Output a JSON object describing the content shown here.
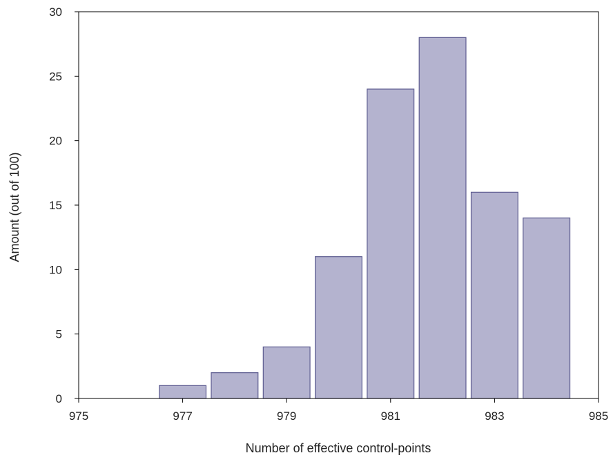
{
  "chart_data": {
    "type": "bar",
    "title": "",
    "xlabel": "Number of effective control-points",
    "ylabel": "Amount (out of 100)",
    "xlim": [
      975,
      985
    ],
    "ylim": [
      0,
      30
    ],
    "x_ticks": [
      975,
      977,
      979,
      981,
      983,
      985
    ],
    "x_tick_labels": [
      "975",
      "977",
      "979",
      "981",
      "983",
      "985"
    ],
    "y_ticks": [
      0,
      5,
      10,
      15,
      20,
      25,
      30
    ],
    "y_tick_labels": [
      "0",
      "5",
      "10",
      "15",
      "20",
      "25",
      "30"
    ],
    "bar_width": 0.9,
    "categories": [
      977,
      978,
      979,
      980,
      981,
      982,
      983,
      984
    ],
    "values": [
      1,
      2,
      4,
      11,
      24,
      28,
      16,
      14
    ],
    "bar_fill_color": "#b4b3cf",
    "bar_edge_color": "#5c5b8f",
    "grid": false,
    "legend": "none"
  }
}
